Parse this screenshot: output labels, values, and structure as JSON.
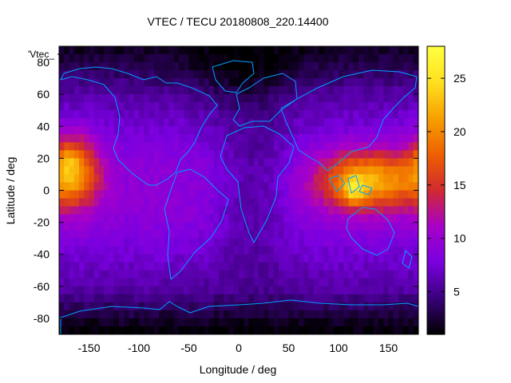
{
  "chart_data": {
    "type": "heatmap",
    "title": "VTEC / TECU 20180808_220.14400",
    "xlabel": "Longitude / deg",
    "ylabel": "Latitude / deg",
    "legend_key": "'Vtec_",
    "xlim": [
      -180,
      180
    ],
    "ylim": [
      -90,
      90
    ],
    "xticks": [
      -150,
      -100,
      -50,
      0,
      50,
      100,
      150
    ],
    "yticks": [
      -80,
      -60,
      -40,
      -20,
      0,
      20,
      40,
      60,
      80
    ],
    "colorbar": {
      "range": [
        1,
        28
      ],
      "ticks": [
        5,
        10,
        15,
        20,
        25
      ],
      "palette": [
        "#000000",
        "#3a007a",
        "#7a00e0",
        "#a800c8",
        "#d02a30",
        "#ee6000",
        "#f7a000",
        "#ffe020",
        "#ffff40"
      ]
    },
    "tec_maxima": [
      {
        "lon": 115,
        "lat": 2,
        "value": 27
      },
      {
        "lon": -170,
        "lat": 18,
        "value": 22
      },
      {
        "lon": 150,
        "lat": 3,
        "value": 19
      }
    ],
    "coastline_color": "#00a0ff"
  }
}
